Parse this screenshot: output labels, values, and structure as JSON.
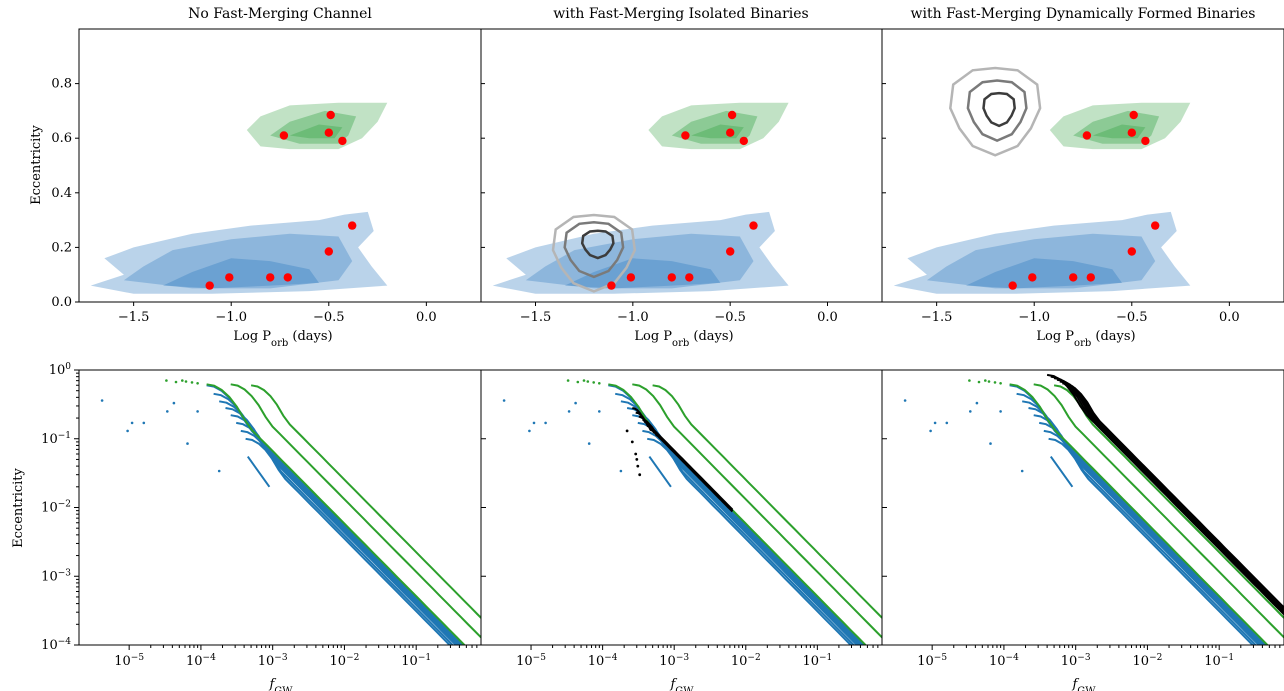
{
  "figure": {
    "panel_titles": [
      "No Fast-Merging Channel",
      "with Fast-Merging Isolated Binaries",
      "with Fast-Merging Dynamically Formed Binaries"
    ],
    "top_xlabel": "Log P_orb (days)",
    "top_ylabel": "Eccentricity",
    "bottom_xlabel": "f_GW",
    "bottom_ylabel": "Eccentricity"
  },
  "colors": {
    "blue": "#1f77b4",
    "green": "#2ca02c",
    "red": "#ff0000",
    "black": "#000000",
    "blue_fill": "#3a82c2",
    "green_fill": "#4cad5a",
    "contour_gray": "#505050"
  },
  "chart_data": [
    {
      "type": "scatter",
      "panel": "top-1",
      "title": "No Fast-Merging Channel",
      "xlabel": "Log P_orb (days)",
      "ylabel": "Eccentricity",
      "xlim": [
        -1.78,
        0.28
      ],
      "ylim": [
        0,
        1.0
      ],
      "xticks": [
        -1.5,
        -1.0,
        -0.5,
        0.0
      ],
      "xtick_labels": [
        "−1.5",
        "−1.0",
        "−0.5",
        "0.0"
      ],
      "yticks": [
        0.0,
        0.2,
        0.4,
        0.6,
        0.8
      ],
      "ytick_labels": [
        "0.0",
        "0.2",
        "0.4",
        "0.6",
        "0.8"
      ],
      "points": [
        [
          -1.11,
          0.06
        ],
        [
          -1.01,
          0.09
        ],
        [
          -0.8,
          0.09
        ],
        [
          -0.71,
          0.09
        ],
        [
          -0.5,
          0.185
        ],
        [
          -0.38,
          0.28
        ],
        [
          -0.73,
          0.61
        ],
        [
          -0.5,
          0.62
        ],
        [
          -0.49,
          0.685
        ],
        [
          -0.43,
          0.59
        ]
      ],
      "density_regions": [
        "blue (low eccentricity)",
        "green (high eccentricity)"
      ]
    },
    {
      "type": "scatter",
      "panel": "top-2",
      "title": "with Fast-Merging Isolated Binaries",
      "xlabel": "Log P_orb (days)",
      "ylabel": "",
      "xlim": [
        -1.78,
        0.28
      ],
      "ylim": [
        0,
        1.0
      ],
      "xticks": [
        -1.5,
        -1.0,
        -0.5,
        0.0
      ],
      "xtick_labels": [
        "−1.5",
        "−1.0",
        "−0.5",
        "0.0"
      ],
      "points": [
        [
          -1.11,
          0.06
        ],
        [
          -1.01,
          0.09
        ],
        [
          -0.8,
          0.09
        ],
        [
          -0.71,
          0.09
        ],
        [
          -0.5,
          0.185
        ],
        [
          -0.38,
          0.28
        ],
        [
          -0.73,
          0.61
        ],
        [
          -0.5,
          0.62
        ],
        [
          -0.49,
          0.685
        ],
        [
          -0.43,
          0.59
        ]
      ],
      "extra_contours": "fast-merging isolated binaries near log P = -1.2, e = 0.2"
    },
    {
      "type": "scatter",
      "panel": "top-3",
      "title": "with Fast-Merging Dynamically Formed Binaries",
      "xlabel": "Log P_orb (days)",
      "ylabel": "",
      "xlim": [
        -1.78,
        0.28
      ],
      "ylim": [
        0,
        1.0
      ],
      "xticks": [
        -1.5,
        -1.0,
        -0.5,
        0.0
      ],
      "xtick_labels": [
        "−1.5",
        "−1.0",
        "−0.5",
        "0.0"
      ],
      "points": [
        [
          -1.11,
          0.06
        ],
        [
          -1.01,
          0.09
        ],
        [
          -0.8,
          0.09
        ],
        [
          -0.71,
          0.09
        ],
        [
          -0.5,
          0.185
        ],
        [
          -0.38,
          0.28
        ],
        [
          -0.73,
          0.61
        ],
        [
          -0.5,
          0.62
        ],
        [
          -0.49,
          0.685
        ],
        [
          -0.43,
          0.59
        ]
      ],
      "extra_contours": "fast-merging dynamically formed binaries near log P = -1.2, e = 0.7"
    },
    {
      "type": "line",
      "panel": "bottom-1",
      "xscale": "log",
      "yscale": "log",
      "xlabel": "f_GW",
      "ylabel": "Eccentricity",
      "xlim": [
        2e-06,
        0.8
      ],
      "ylim": [
        0.0001,
        1.0
      ],
      "xtick_labels": [
        "10^−5",
        "10^−4",
        "10^−3",
        "10^−2",
        "10^−1"
      ],
      "ytick_labels": [
        "10^−4",
        "10^−3",
        "10^−2",
        "10^−1",
        "10^0"
      ],
      "series": [
        {
          "color": "blue",
          "count": 8,
          "start_f_range": [
            0.00012,
            0.0004
          ],
          "start_e_range": [
            0.06,
            0.6
          ]
        },
        {
          "color": "green",
          "count": 3,
          "start_f_range": [
            0.00012,
            0.0005
          ],
          "start_e_range": [
            0.5,
            0.7
          ]
        }
      ]
    },
    {
      "type": "line",
      "panel": "bottom-2",
      "xscale": "log",
      "yscale": "log",
      "xlabel": "f_GW",
      "xlim": [
        2e-06,
        0.8
      ],
      "ylim": [
        0.0001,
        1.0
      ],
      "xtick_labels": [
        "10^−5",
        "10^−4",
        "10^−3",
        "10^−2",
        "10^−1"
      ],
      "series": [
        {
          "color": "blue",
          "count": 8
        },
        {
          "color": "green",
          "count": 3
        },
        {
          "color": "black",
          "count": 5,
          "start_f_range": [
            0.00025,
            0.0004
          ],
          "start_e_range": [
            0.15,
            0.3
          ]
        }
      ]
    },
    {
      "type": "line",
      "panel": "bottom-3",
      "xscale": "log",
      "yscale": "log",
      "xlabel": "f_GW",
      "xlim": [
        2e-06,
        0.8
      ],
      "ylim": [
        0.0001,
        1.0
      ],
      "xtick_labels": [
        "10^−5",
        "10^−4",
        "10^−3",
        "10^−2",
        "10^−1"
      ],
      "series": [
        {
          "color": "blue",
          "count": 8
        },
        {
          "color": "green",
          "count": 3
        },
        {
          "color": "black",
          "count": 6,
          "start_f_range": [
            0.0004,
            0.0006
          ],
          "start_e_range": [
            0.6,
            0.85
          ]
        }
      ]
    }
  ]
}
